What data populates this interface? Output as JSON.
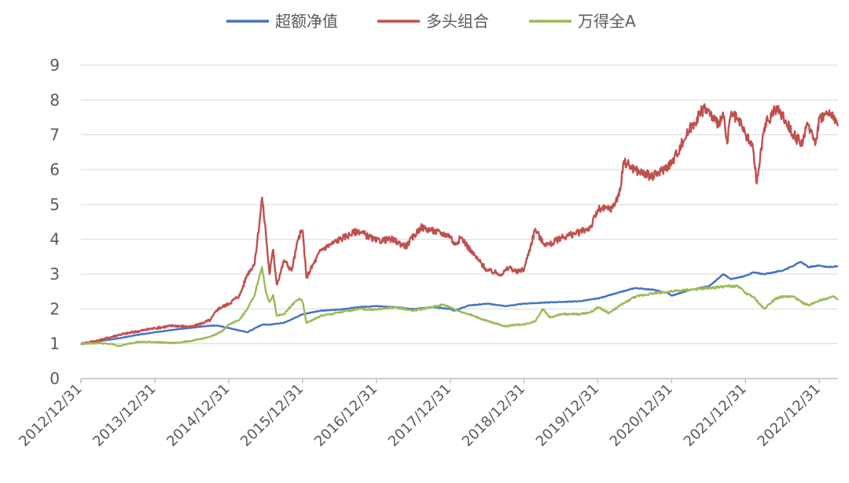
{
  "chart_data": {
    "type": "line",
    "title": "",
    "xlabel": "",
    "ylabel": "",
    "ylim": [
      0,
      9
    ],
    "y_ticks": [
      "0",
      "1",
      "2",
      "3",
      "4",
      "5",
      "6",
      "7",
      "8",
      "9"
    ],
    "x_ticks": [
      "2012/12/31",
      "2013/12/31",
      "2014/12/31",
      "2015/12/31",
      "2016/12/31",
      "2017/12/31",
      "2018/12/31",
      "2019/12/31",
      "2020/12/31",
      "2021/12/31",
      "2022/12/31"
    ],
    "xlim": [
      2012.9973,
      2023.25
    ],
    "grid": "horizontal",
    "legend_position": "top",
    "series": [
      {
        "name": "超额净值",
        "color": "#4472C4",
        "x": [
          2012.9973,
          2013.25,
          2013.5,
          2013.75,
          2014.0,
          2014.25,
          2014.5,
          2014.75,
          2014.85,
          2015.0,
          2015.25,
          2015.45,
          2015.55,
          2015.75,
          2016.0,
          2016.25,
          2016.5,
          2016.75,
          2017.0,
          2017.25,
          2017.5,
          2017.75,
          2018.0,
          2018.05,
          2018.25,
          2018.5,
          2018.75,
          2019.0,
          2019.25,
          2019.5,
          2019.75,
          2020.0,
          2020.25,
          2020.5,
          2020.75,
          2020.95,
          2021.0,
          2021.25,
          2021.5,
          2021.7,
          2021.8,
          2021.9,
          2022.0,
          2022.1,
          2022.25,
          2022.5,
          2022.75,
          2022.85,
          2023.0,
          2023.1,
          2023.25
        ],
        "y": [
          1.0,
          1.08,
          1.15,
          1.25,
          1.33,
          1.4,
          1.46,
          1.52,
          1.52,
          1.45,
          1.33,
          1.55,
          1.55,
          1.6,
          1.85,
          1.95,
          1.98,
          2.05,
          2.08,
          2.05,
          2.0,
          2.05,
          2.0,
          1.95,
          2.1,
          2.15,
          2.08,
          2.15,
          2.18,
          2.2,
          2.22,
          2.3,
          2.45,
          2.6,
          2.55,
          2.45,
          2.38,
          2.55,
          2.65,
          3.0,
          2.85,
          2.9,
          2.95,
          3.05,
          3.0,
          3.1,
          3.35,
          3.2,
          3.25,
          3.2,
          3.22
        ]
      },
      {
        "name": "多头组合",
        "color": "#C0504D",
        "x": [
          2012.9973,
          2013.25,
          2013.5,
          2013.75,
          2014.0,
          2014.25,
          2014.5,
          2014.75,
          2014.85,
          2015.0,
          2015.15,
          2015.25,
          2015.35,
          2015.42,
          2015.45,
          2015.5,
          2015.55,
          2015.6,
          2015.65,
          2015.75,
          2015.85,
          2015.95,
          2016.0,
          2016.05,
          2016.25,
          2016.5,
          2016.75,
          2017.0,
          2017.2,
          2017.4,
          2017.6,
          2017.75,
          2018.0,
          2018.05,
          2018.15,
          2018.3,
          2018.5,
          2018.7,
          2018.8,
          2018.9,
          2019.0,
          2019.15,
          2019.25,
          2019.35,
          2019.5,
          2019.75,
          2019.9,
          2020.0,
          2020.2,
          2020.3,
          2020.35,
          2020.5,
          2020.6,
          2020.75,
          2020.85,
          2021.0,
          2021.2,
          2021.3,
          2021.45,
          2021.6,
          2021.7,
          2021.75,
          2021.8,
          2021.9,
          2022.0,
          2022.1,
          2022.15,
          2022.25,
          2022.3,
          2022.4,
          2022.5,
          2022.65,
          2022.75,
          2022.85,
          2022.95,
          2023.0,
          2023.1,
          2023.2,
          2023.25
        ],
        "y": [
          1.0,
          1.1,
          1.25,
          1.35,
          1.45,
          1.52,
          1.48,
          1.68,
          2.0,
          2.15,
          2.4,
          3.0,
          3.3,
          4.6,
          5.2,
          4.2,
          3.0,
          3.7,
          2.7,
          3.4,
          3.1,
          4.1,
          4.25,
          2.9,
          3.7,
          4.0,
          4.25,
          3.95,
          4.0,
          3.8,
          4.35,
          4.25,
          4.1,
          3.85,
          4.05,
          3.6,
          3.1,
          3.0,
          3.2,
          3.05,
          3.15,
          4.3,
          3.9,
          3.85,
          4.05,
          4.2,
          4.35,
          4.85,
          4.9,
          5.4,
          6.25,
          6.0,
          5.9,
          5.8,
          5.95,
          6.2,
          7.0,
          7.35,
          7.8,
          7.35,
          7.5,
          6.75,
          7.6,
          7.4,
          7.0,
          6.6,
          5.6,
          7.2,
          7.4,
          7.75,
          7.55,
          7.0,
          6.75,
          7.3,
          6.8,
          7.5,
          7.6,
          7.55,
          7.25
        ]
      },
      {
        "name": "万得全A",
        "color": "#9BBB59",
        "x": [
          2012.9973,
          2013.25,
          2013.45,
          2013.5,
          2013.75,
          2014.0,
          2014.25,
          2014.5,
          2014.75,
          2014.9,
          2015.0,
          2015.15,
          2015.25,
          2015.35,
          2015.42,
          2015.45,
          2015.5,
          2015.55,
          2015.6,
          2015.65,
          2015.75,
          2015.85,
          2015.95,
          2016.0,
          2016.05,
          2016.25,
          2016.5,
          2016.75,
          2017.0,
          2017.25,
          2017.5,
          2017.75,
          2017.9,
          2018.0,
          2018.1,
          2018.25,
          2018.5,
          2018.75,
          2018.9,
          2019.0,
          2019.15,
          2019.25,
          2019.35,
          2019.5,
          2019.75,
          2019.9,
          2020.0,
          2020.15,
          2020.3,
          2020.5,
          2020.75,
          2021.0,
          2021.25,
          2021.5,
          2021.75,
          2021.9,
          2022.0,
          2022.1,
          2022.25,
          2022.4,
          2022.5,
          2022.65,
          2022.75,
          2022.85,
          2023.0,
          2023.1,
          2023.2,
          2023.25
        ],
        "y": [
          1.0,
          1.02,
          0.98,
          0.93,
          1.05,
          1.05,
          1.02,
          1.08,
          1.2,
          1.35,
          1.55,
          1.7,
          2.0,
          2.4,
          3.0,
          3.2,
          2.5,
          2.2,
          2.4,
          1.8,
          1.85,
          2.1,
          2.3,
          2.2,
          1.6,
          1.8,
          1.9,
          2.0,
          1.98,
          2.05,
          1.95,
          2.05,
          2.12,
          2.05,
          1.95,
          1.85,
          1.65,
          1.5,
          1.55,
          1.55,
          1.65,
          2.0,
          1.75,
          1.85,
          1.85,
          1.9,
          2.05,
          1.88,
          2.1,
          2.35,
          2.45,
          2.5,
          2.55,
          2.6,
          2.65,
          2.65,
          2.45,
          2.35,
          2.0,
          2.3,
          2.35,
          2.35,
          2.2,
          2.1,
          2.25,
          2.3,
          2.35,
          2.25
        ]
      }
    ]
  }
}
